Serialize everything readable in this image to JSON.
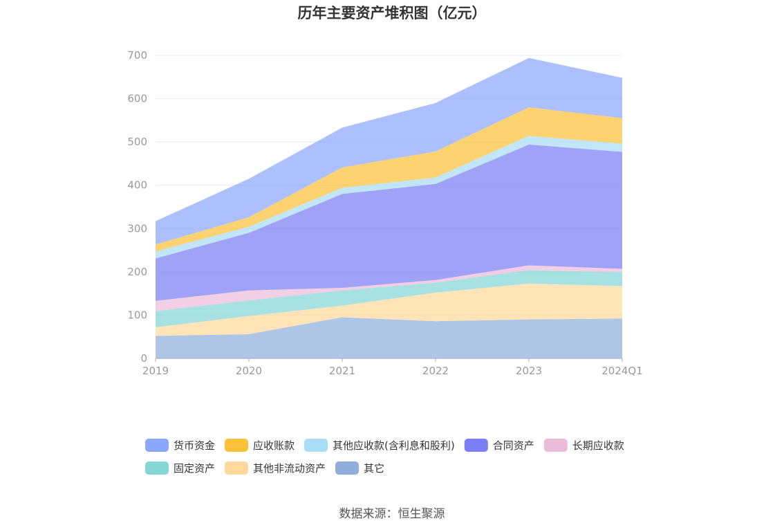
{
  "chart_data": {
    "type": "area",
    "stacked": true,
    "title": "历年主要资产堆积图（亿元）",
    "categories": [
      "2019",
      "2020",
      "2021",
      "2022",
      "2023",
      "2024Q1"
    ],
    "ylim": [
      0,
      700
    ],
    "yticks": [
      0,
      100,
      200,
      300,
      400,
      500,
      600,
      700
    ],
    "grid": true,
    "legend_position": "bottom",
    "series": [
      {
        "name": "其它",
        "color": "#8faedc",
        "values": [
          52,
          56,
          95,
          86,
          90,
          92
        ]
      },
      {
        "name": "其他非流动资产",
        "color": "#fdd99b",
        "values": [
          20,
          42,
          27,
          66,
          83,
          75
        ]
      },
      {
        "name": "固定资产",
        "color": "#87d6d6",
        "values": [
          37,
          36,
          35,
          23,
          31,
          32
        ]
      },
      {
        "name": "长期应收款",
        "color": "#ebbcd9",
        "values": [
          24,
          23,
          6,
          6,
          11,
          8
        ]
      },
      {
        "name": "合同资产",
        "color": "#7b7ef4",
        "values": [
          98,
          133,
          217,
          222,
          279,
          270
        ]
      },
      {
        "name": "其他应收款(含利息和股利)",
        "color": "#a9dcf5",
        "values": [
          16,
          14,
          14,
          15,
          20,
          19
        ]
      },
      {
        "name": "应收账款",
        "color": "#fcc13a",
        "values": [
          16,
          22,
          47,
          60,
          66,
          59
        ]
      },
      {
        "name": "货币资金",
        "color": "#8aa8fb",
        "values": [
          54,
          89,
          92,
          112,
          114,
          93
        ]
      }
    ],
    "legend_order": [
      "货币资金",
      "应收账款",
      "其他应收款(含利息和股利)",
      "合同资产",
      "长期应收款",
      "固定资产",
      "其他非流动资产",
      "其它"
    ]
  },
  "source": "数据来源：恒生聚源"
}
